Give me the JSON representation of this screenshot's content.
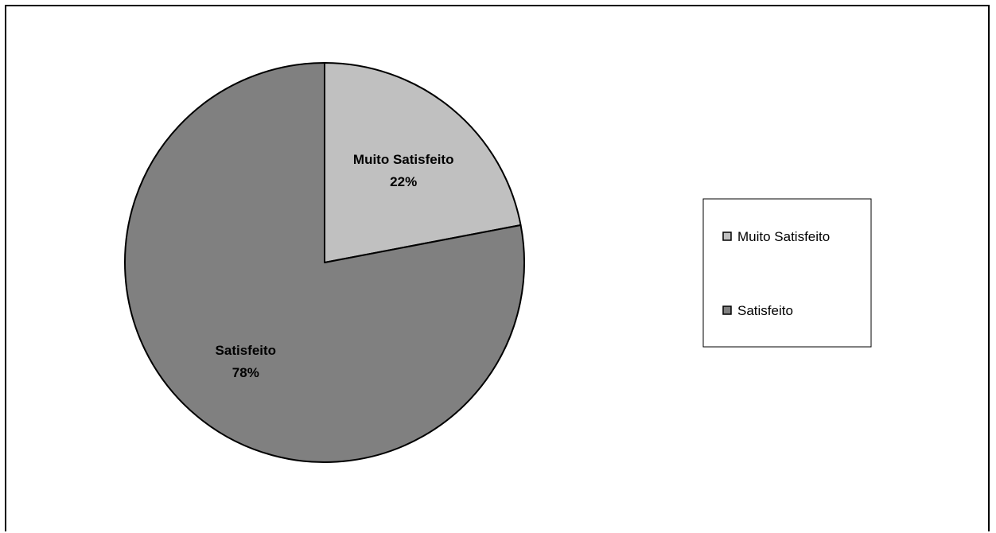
{
  "chart_data": {
    "type": "pie",
    "categories": [
      "Muito Satisfeito",
      "Satisfeito"
    ],
    "values": [
      22,
      78
    ],
    "value_labels": [
      "22%",
      "78%"
    ],
    "colors": [
      "#c0c0c0",
      "#808080"
    ],
    "title": "",
    "legend": {
      "position": "right",
      "items": [
        "Muito Satisfeito",
        "Satisfeito"
      ]
    }
  }
}
